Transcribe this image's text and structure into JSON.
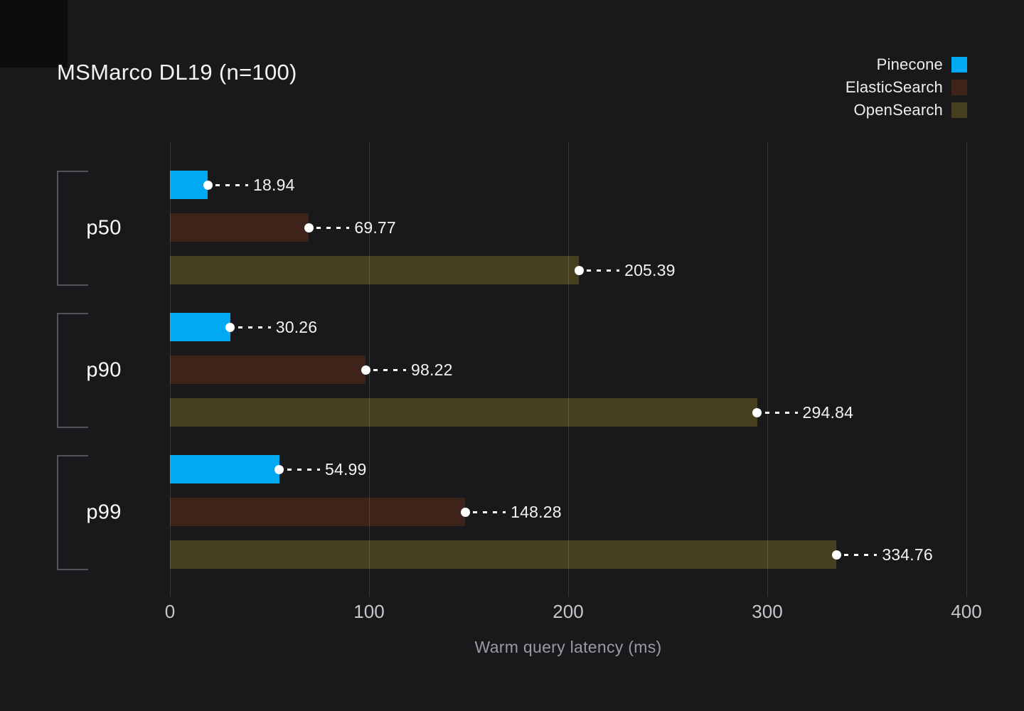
{
  "title": "MSMarco DL19 (n=100)",
  "colors": {
    "background": "#19191B",
    "corner_square": "#0C0C0D",
    "gridline": "rgba(255,255,255,0.14)",
    "bracket": "#53535A",
    "value_label_text": "#F3F3F3",
    "tick_label_text": "#C7C7CB",
    "axis_label_text": "#9A9AA1",
    "title_text": "#F4F4F5"
  },
  "chart_data": {
    "type": "bar",
    "orientation": "horizontal",
    "title": "MSMarco DL19 (n=100)",
    "xlabel": "Warm query latency (ms)",
    "xlim": [
      0,
      400
    ],
    "xticks": [
      0,
      100,
      200,
      300,
      400
    ],
    "grid": true,
    "legend_position": "top-right",
    "categories": [
      "p50",
      "p90",
      "p99"
    ],
    "series": [
      {
        "name": "Pinecone",
        "color": "#00A9F2",
        "values": [
          18.94,
          30.26,
          54.99
        ]
      },
      {
        "name": "ElasticSearch",
        "color": "#3E231B",
        "values": [
          69.77,
          98.22,
          148.28
        ]
      },
      {
        "name": "OpenSearch",
        "color": "#46401E",
        "values": [
          205.39,
          294.84,
          334.76
        ]
      }
    ]
  }
}
